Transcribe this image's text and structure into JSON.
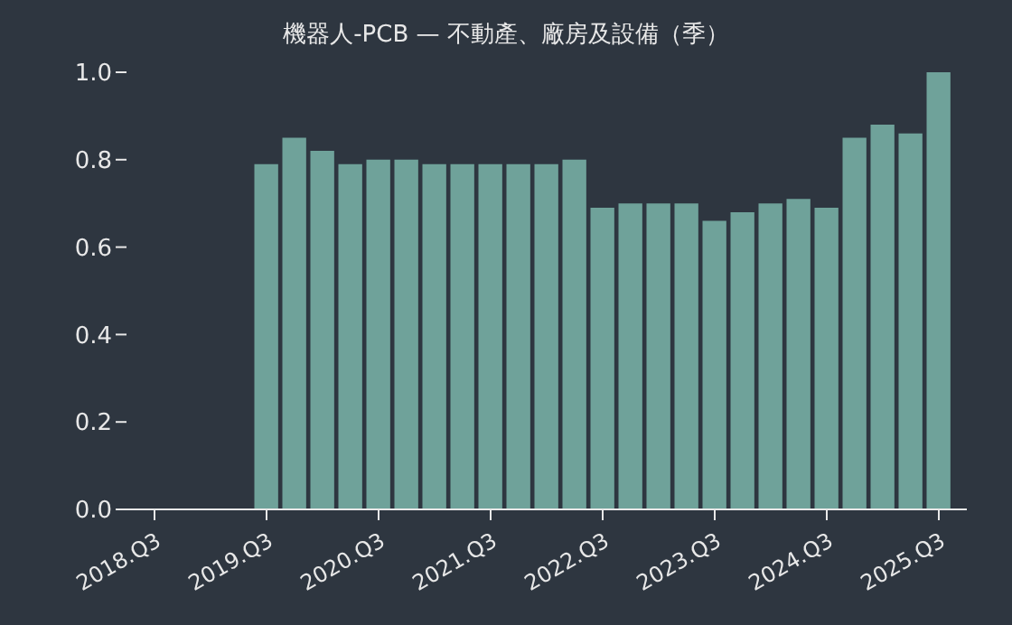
{
  "chart_data": {
    "type": "bar",
    "title": "機器人-PCB — 不動產、廠房及設備（季）",
    "categories": [
      "2018.Q3",
      null,
      null,
      null,
      "2019.Q3",
      null,
      null,
      null,
      "2020.Q3",
      null,
      null,
      null,
      "2021.Q3",
      null,
      null,
      null,
      "2022.Q3",
      null,
      null,
      null,
      "2023.Q3",
      null,
      null,
      null,
      "2024.Q3",
      null,
      null,
      null,
      "2025.Q3"
    ],
    "values": [
      null,
      null,
      null,
      null,
      0.79,
      0.85,
      0.82,
      0.79,
      0.8,
      0.8,
      0.79,
      0.79,
      0.79,
      0.79,
      0.79,
      0.8,
      0.69,
      0.7,
      0.7,
      0.7,
      0.66,
      0.68,
      0.7,
      0.71,
      0.69,
      0.85,
      0.88,
      0.86,
      1.0
    ],
    "color": "#6fa29a",
    "ylim": [
      0,
      1.0
    ],
    "yticks": [
      {
        "value": 0,
        "label": "0.0"
      },
      0.2,
      0.4,
      0.6,
      0.8,
      {
        "value": 1,
        "label": "1.0"
      }
    ]
  }
}
